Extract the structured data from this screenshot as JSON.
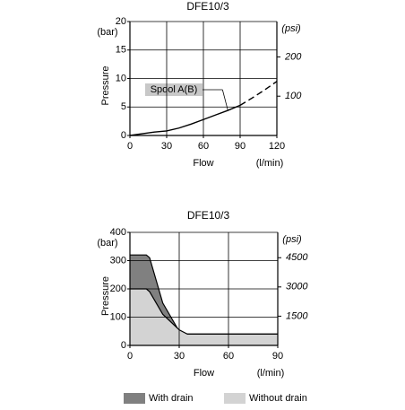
{
  "chart_data": [
    {
      "type": "line",
      "title": "DFE10/3",
      "xlabel": "Flow",
      "xunit": "(l/min)",
      "ylabel": "Pressure",
      "yunit": "(bar)",
      "y2unit": "(psi)",
      "x": [
        0,
        10,
        20,
        30,
        40,
        50,
        60,
        70,
        80,
        90,
        100,
        110,
        120
      ],
      "series": [
        {
          "name": "Spool A(B)",
          "color": "#000000",
          "dashed_from": 90,
          "values": [
            0,
            0.3,
            0.6,
            0.8,
            1.3,
            2,
            2.8,
            3.6,
            4.4,
            5.3,
            6.6,
            8,
            9.5
          ]
        }
      ],
      "xlim": [
        0,
        120
      ],
      "xticks": [
        0,
        30,
        60,
        90,
        120
      ],
      "ylim": [
        0,
        20
      ],
      "yticks": [
        0,
        5,
        10,
        15,
        20
      ],
      "y2lim": [
        0,
        290
      ],
      "y2ticks": [
        100,
        200
      ],
      "grid": true
    },
    {
      "type": "area",
      "title": "DFE10/3",
      "xlabel": "Flow",
      "xunit": "(l/min)",
      "ylabel": "Pressure",
      "yunit": "(bar)",
      "y2unit": "(psi)",
      "x": [
        0,
        10,
        12,
        20,
        30,
        35,
        90
      ],
      "series": [
        {
          "name": "With drain",
          "color": "#808080",
          "values": [
            320,
            320,
            310,
            150,
            50,
            40,
            40
          ]
        },
        {
          "name": "Without drain",
          "color": "#d3d3d3",
          "values": [
            200,
            200,
            190,
            110,
            55,
            40,
            40
          ]
        }
      ],
      "xlim": [
        0,
        90
      ],
      "xticks": [
        0,
        30,
        60,
        90
      ],
      "ylim": [
        0,
        400
      ],
      "yticks": [
        0,
        100,
        200,
        300,
        400
      ],
      "y2lim": [
        0,
        5800
      ],
      "y2ticks": [
        1500,
        3000,
        4500
      ],
      "grid": true,
      "legend": "bottom"
    }
  ]
}
